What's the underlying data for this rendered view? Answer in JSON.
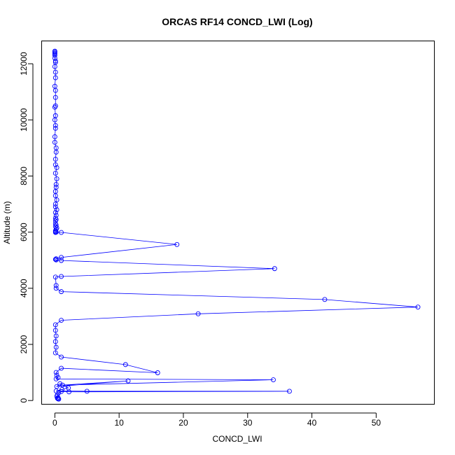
{
  "chart_data": {
    "type": "line",
    "title": "ORCAS RF14 CONCD_LWI (Log)",
    "xlabel": "CONCD_LWI",
    "ylabel": "Altitude (m)",
    "xlim": [
      -2,
      59
    ],
    "ylim": [
      -120,
      12800
    ],
    "x_ticks": [
      0,
      10,
      20,
      30,
      40,
      50
    ],
    "y_ticks": [
      0,
      2000,
      4000,
      6000,
      8000,
      10000,
      12000
    ],
    "grid": false,
    "legend": "none",
    "markers": "open-circle",
    "colors": {
      "series": "#0000ff",
      "axes": "#000000",
      "background": "#ffffff"
    },
    "series": [
      {
        "x": [
          0,
          0,
          0,
          0,
          0,
          0,
          0.1,
          0.1,
          0,
          0.1,
          0.1,
          0,
          0.1,
          0.1,
          0.1,
          0,
          0.1,
          0,
          0.1,
          0.1,
          0,
          0,
          0.2,
          0.2,
          0.1,
          0.1,
          0.3,
          0.1,
          0.3,
          0.2,
          0.2,
          0.1,
          0.1,
          0.3,
          0.1,
          0.1,
          0.3,
          0.1,
          0.2,
          0.1,
          0.2,
          0.1,
          0.1,
          0.2,
          0.1,
          0.3,
          0.2,
          0.1,
          0.1,
          0.2,
          0.1,
          1.0,
          19,
          1.0,
          0.2,
          0.1,
          0.2,
          1.0,
          34.2,
          1.0,
          0.1,
          0.2,
          0.2,
          1.0,
          42,
          56.5,
          22.3,
          1.0,
          0.1,
          0.1,
          0.2,
          0.1,
          0.2,
          0.1,
          1.0,
          11,
          16,
          1.0,
          0.2,
          0.3,
          0.5,
          0.2,
          34,
          1.2,
          11.4,
          0.3,
          0.8,
          2.1,
          1.1,
          0.2,
          5,
          36.5,
          2.2,
          1.0,
          0.6,
          0.4,
          0.3,
          0.5,
          0.4,
          0.5,
          0.6
        ],
        "y": [
          12450,
          12420,
          12380,
          12350,
          12300,
          12200,
          12100,
          12050,
          11900,
          11700,
          11500,
          11200,
          11050,
          10800,
          10500,
          10450,
          10150,
          10000,
          9800,
          9700,
          9400,
          9200,
          9000,
          8850,
          8600,
          8400,
          8300,
          8100,
          7900,
          7700,
          7600,
          7450,
          7300,
          7150,
          7000,
          6900,
          6800,
          6700,
          6600,
          6500,
          6450,
          6400,
          6300,
          6250,
          6200,
          6150,
          6100,
          6050,
          6020,
          6000,
          5990,
          5990,
          5560,
          5100,
          5050,
          5030,
          5010,
          4990,
          4700,
          4420,
          4400,
          4100,
          4000,
          3880,
          3600,
          3330,
          3090,
          2860,
          2700,
          2500,
          2300,
          2100,
          1900,
          1700,
          1550,
          1280,
          990,
          1150,
          1000,
          900,
          820,
          770,
          740,
          550,
          700,
          500,
          600,
          450,
          390,
          340,
          330,
          330,
          310,
          320,
          280,
          200,
          150,
          100,
          80,
          60,
          50
        ]
      }
    ]
  }
}
